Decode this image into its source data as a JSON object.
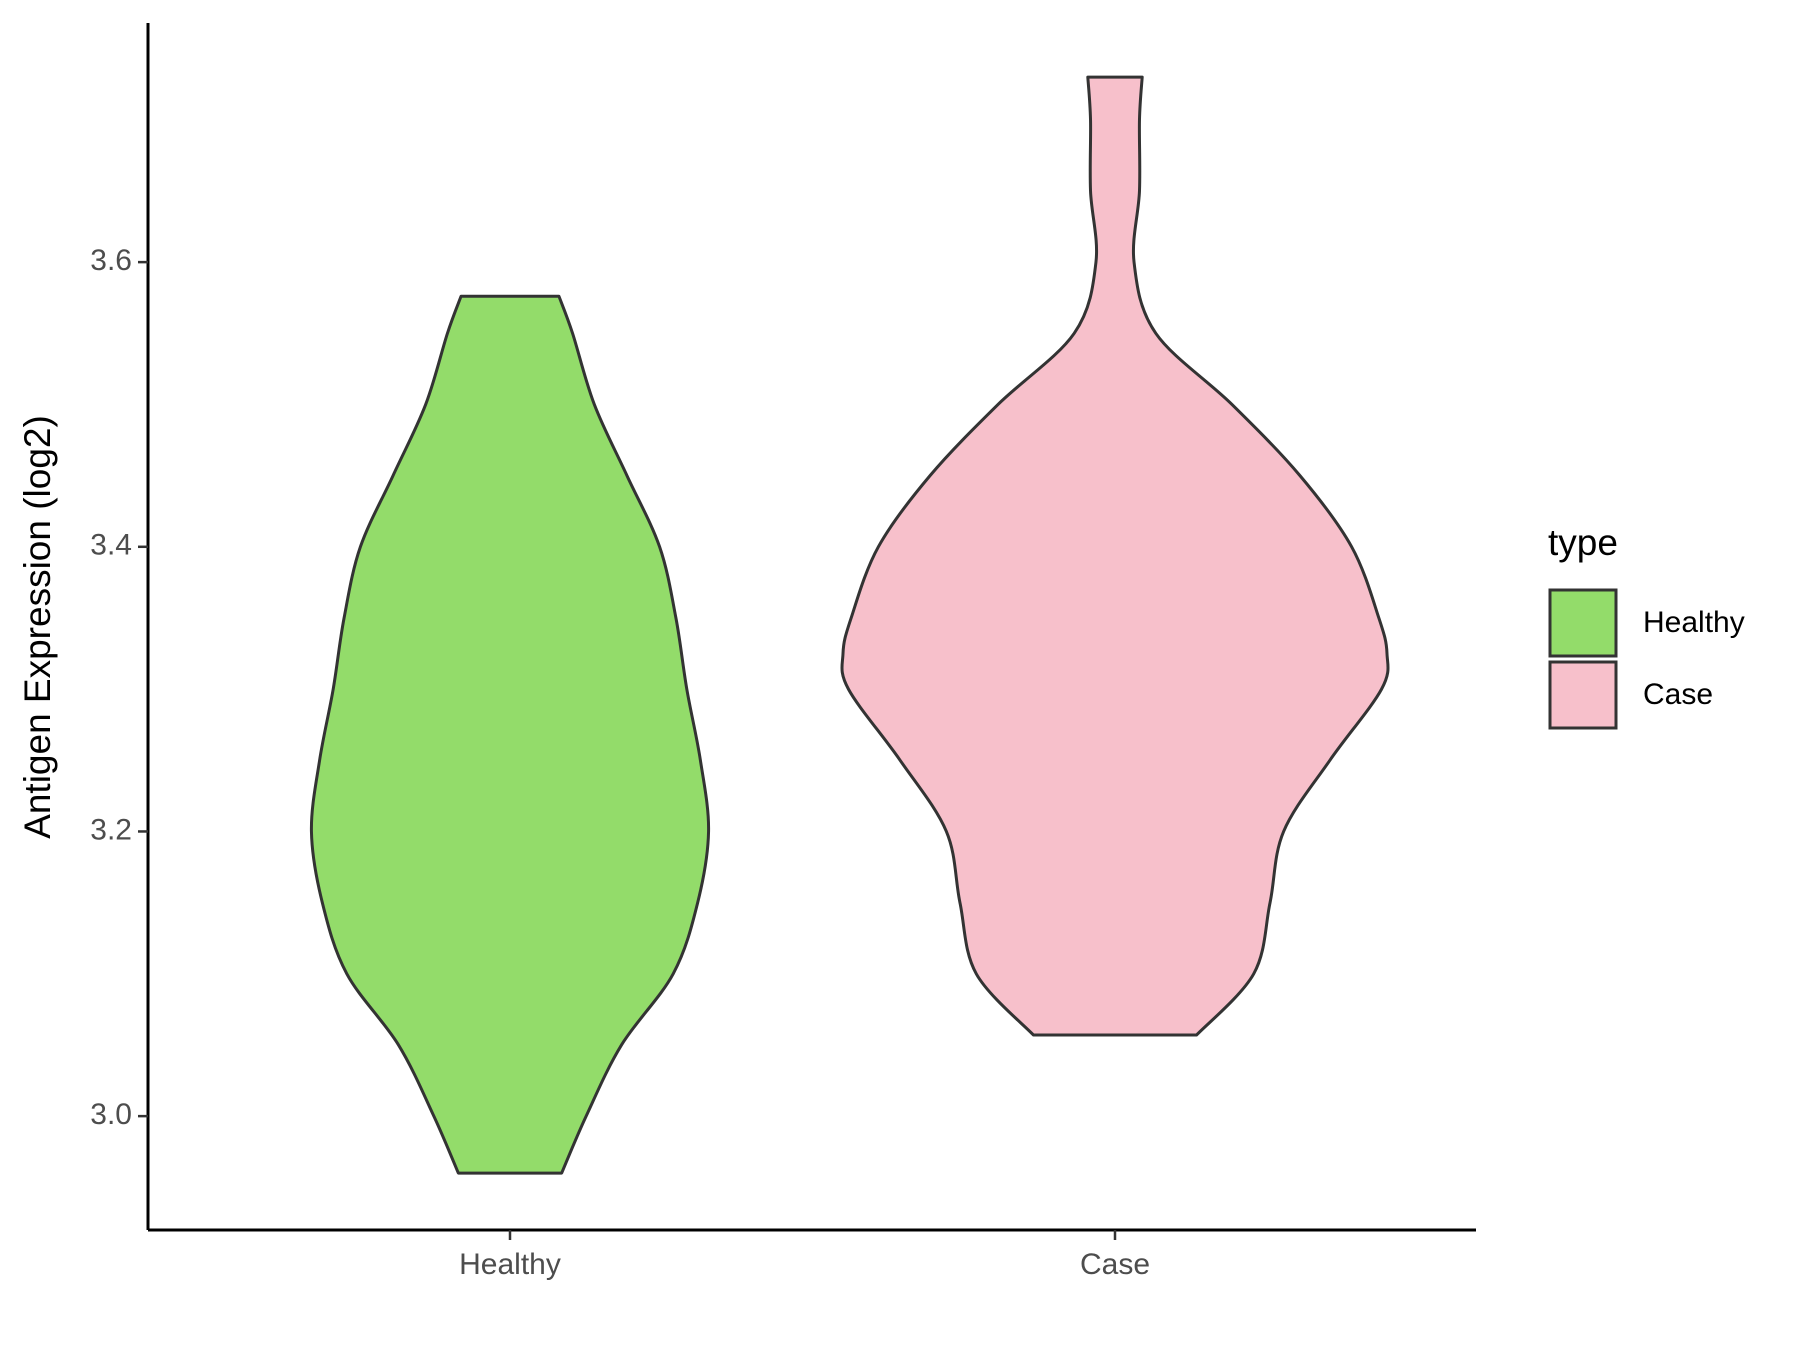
{
  "chart_data": {
    "type": "violin",
    "y_label": "Antigen Expression (log2)",
    "categories": [
      "Healthy",
      "Case"
    ],
    "legend_title": "type",
    "legend_position": "right",
    "ylim": [
      2.92,
      3.768
    ],
    "yticks": [
      {
        "value": 3,
        "label": "3.0"
      },
      3.2,
      3.4,
      3.6
    ],
    "series": [
      {
        "name": "Healthy",
        "color": "#93dc6a",
        "y": [
          2.96,
          3.0,
          3.05,
          3.1,
          3.15,
          3.2,
          3.25,
          3.3,
          3.35,
          3.4,
          3.45,
          3.5,
          3.55,
          3.576
        ],
        "density": [
          0.19,
          0.28,
          0.41,
          0.6,
          0.69,
          0.73,
          0.7,
          0.65,
          0.61,
          0.55,
          0.43,
          0.31,
          0.23,
          0.18
        ]
      },
      {
        "name": "Case",
        "color": "#f7c0cb",
        "y": [
          3.057,
          3.1,
          3.15,
          3.2,
          3.25,
          3.3,
          3.325,
          3.35,
          3.4,
          3.45,
          3.5,
          3.55,
          3.6,
          3.65,
          3.7,
          3.73
        ],
        "density": [
          0.3,
          0.51,
          0.57,
          0.62,
          0.79,
          0.98,
          1.0,
          0.97,
          0.87,
          0.68,
          0.43,
          0.15,
          0.07,
          0.09,
          0.09,
          0.1
        ]
      }
    ]
  }
}
